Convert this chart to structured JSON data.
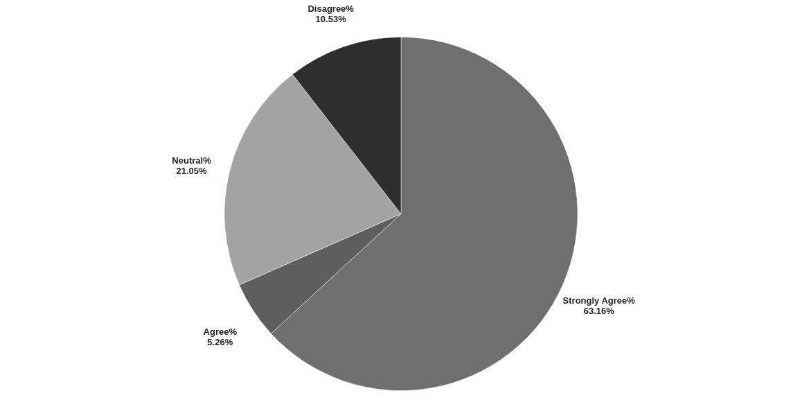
{
  "chart_data": {
    "type": "pie",
    "categories": [
      "Strongly Agree%",
      "Agree%",
      "Neutral%",
      "Disagree%"
    ],
    "values": [
      63.16,
      5.26,
      21.05,
      10.53
    ],
    "value_labels": [
      "63.16%",
      "5.26%",
      "21.05%",
      "10.53%"
    ],
    "colors": [
      "#6f6f6f",
      "#5e5e5e",
      "#a3a3a3",
      "#2e2e2e"
    ],
    "legend": false
  }
}
